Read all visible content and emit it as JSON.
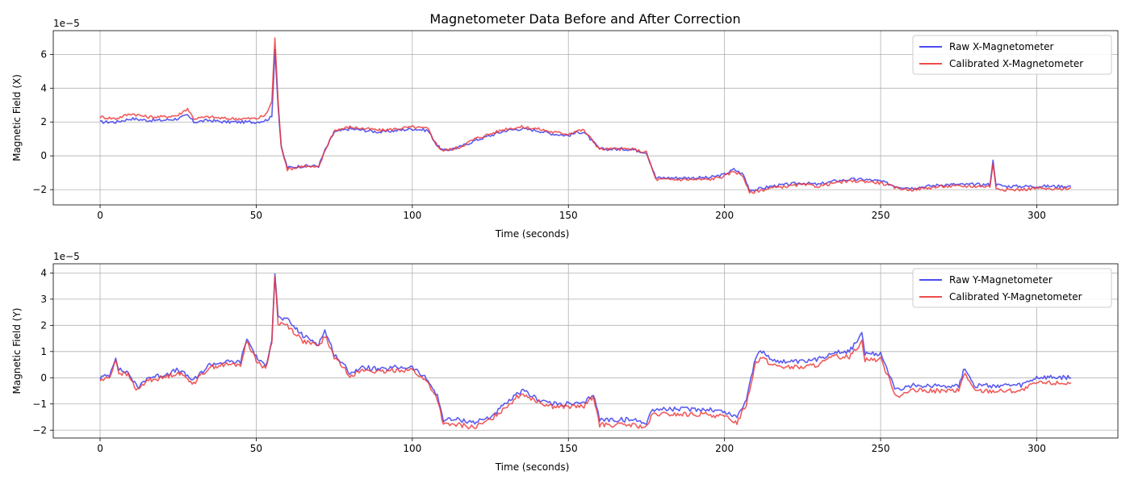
{
  "title": "Magnetometer Data Before and After Correction",
  "colors": {
    "raw": "#3333ee",
    "calibrated": "#ee3333",
    "grid": "#b0b0b0"
  },
  "chart_data": [
    {
      "type": "line",
      "title": "Magnetometer Data Before and After Correction",
      "xlabel": "Time (seconds)",
      "ylabel": "Magnetic Field (X)",
      "offset_label": "1e−5",
      "xlim": [
        -15,
        326
      ],
      "ylim": [
        -2.9,
        7.4
      ],
      "xticks": [
        0,
        50,
        100,
        150,
        200,
        250,
        300
      ],
      "yticks": [
        -2,
        0,
        2,
        4,
        6
      ],
      "grid": true,
      "legend_position": "top-right",
      "series": [
        {
          "name": "Raw X-Magnetometer",
          "color": "#3333ee",
          "x": [
            0,
            5,
            10,
            15,
            20,
            25,
            28,
            30,
            35,
            40,
            45,
            50,
            53,
            55,
            56,
            57,
            58,
            60,
            65,
            70,
            72,
            75,
            80,
            85,
            90,
            95,
            100,
            105,
            108,
            110,
            115,
            120,
            125,
            130,
            135,
            140,
            145,
            150,
            153,
            155,
            160,
            165,
            170,
            175,
            178,
            180,
            185,
            190,
            195,
            200,
            203,
            206,
            208,
            210,
            215,
            220,
            225,
            230,
            235,
            240,
            245,
            250,
            255,
            260,
            265,
            270,
            275,
            280,
            285,
            286,
            287,
            290,
            295,
            300,
            305,
            311
          ],
          "y": [
            2.0,
            2.0,
            2.2,
            2.1,
            2.1,
            2.2,
            2.4,
            2.0,
            2.1,
            2.0,
            2.0,
            2.0,
            2.1,
            2.3,
            6.3,
            3.0,
            0.5,
            -0.7,
            -0.6,
            -0.6,
            0.3,
            1.4,
            1.6,
            1.5,
            1.4,
            1.5,
            1.6,
            1.5,
            0.6,
            0.3,
            0.5,
            0.9,
            1.2,
            1.5,
            1.6,
            1.5,
            1.3,
            1.2,
            1.4,
            1.4,
            0.4,
            0.4,
            0.4,
            0.2,
            -1.3,
            -1.3,
            -1.3,
            -1.3,
            -1.3,
            -1.1,
            -0.8,
            -1.1,
            -2.0,
            -2.0,
            -1.8,
            -1.7,
            -1.6,
            -1.7,
            -1.5,
            -1.4,
            -1.4,
            -1.5,
            -1.8,
            -1.9,
            -1.8,
            -1.7,
            -1.7,
            -1.7,
            -1.7,
            -0.3,
            -1.7,
            -1.8,
            -1.8,
            -1.8,
            -1.8,
            -1.8
          ]
        },
        {
          "name": "Calibrated X-Magnetometer",
          "color": "#ee3333",
          "x": [
            0,
            5,
            10,
            15,
            20,
            25,
            28,
            30,
            35,
            40,
            45,
            50,
            53,
            55,
            56,
            57,
            58,
            60,
            65,
            70,
            72,
            75,
            80,
            85,
            90,
            95,
            100,
            105,
            108,
            110,
            115,
            120,
            125,
            130,
            135,
            140,
            145,
            150,
            153,
            155,
            160,
            165,
            170,
            175,
            178,
            180,
            185,
            190,
            195,
            200,
            203,
            206,
            208,
            210,
            215,
            220,
            225,
            230,
            235,
            240,
            245,
            250,
            255,
            260,
            265,
            270,
            275,
            280,
            285,
            286,
            287,
            290,
            295,
            300,
            305,
            311
          ],
          "y": [
            2.3,
            2.2,
            2.5,
            2.3,
            2.3,
            2.4,
            2.8,
            2.2,
            2.3,
            2.2,
            2.2,
            2.2,
            2.4,
            3.2,
            7.0,
            3.2,
            0.6,
            -0.8,
            -0.6,
            -0.7,
            0.3,
            1.5,
            1.7,
            1.6,
            1.5,
            1.6,
            1.7,
            1.6,
            0.6,
            0.3,
            0.5,
            1.0,
            1.3,
            1.6,
            1.7,
            1.6,
            1.4,
            1.3,
            1.5,
            1.5,
            0.4,
            0.4,
            0.4,
            0.2,
            -1.4,
            -1.4,
            -1.4,
            -1.4,
            -1.4,
            -1.2,
            -0.9,
            -1.2,
            -2.2,
            -2.1,
            -1.9,
            -1.8,
            -1.7,
            -1.8,
            -1.6,
            -1.5,
            -1.5,
            -1.6,
            -1.9,
            -2.0,
            -1.9,
            -1.8,
            -1.8,
            -1.8,
            -1.8,
            -0.5,
            -1.9,
            -2.0,
            -2.0,
            -1.9,
            -2.0,
            -1.9
          ]
        }
      ]
    },
    {
      "type": "line",
      "title": "",
      "xlabel": "Time (seconds)",
      "ylabel": "Magnetic Field (Y)",
      "offset_label": "1e−5",
      "xlim": [
        -15,
        326
      ],
      "ylim": [
        -2.3,
        4.35
      ],
      "xticks": [
        0,
        50,
        100,
        150,
        200,
        250,
        300
      ],
      "yticks": [
        -2,
        -1,
        0,
        1,
        2,
        3,
        4
      ],
      "grid": true,
      "legend_position": "top-right",
      "series": [
        {
          "name": "Raw Y-Magnetometer",
          "color": "#3333ee",
          "x": [
            0,
            3,
            5,
            6,
            9,
            12,
            15,
            20,
            25,
            30,
            35,
            40,
            45,
            47,
            50,
            53,
            55,
            56,
            57,
            60,
            65,
            70,
            72,
            75,
            80,
            85,
            90,
            95,
            100,
            105,
            108,
            110,
            115,
            120,
            125,
            130,
            135,
            137,
            140,
            145,
            150,
            155,
            158,
            160,
            165,
            170,
            175,
            177,
            180,
            185,
            190,
            195,
            200,
            204,
            207,
            210,
            212,
            215,
            220,
            225,
            230,
            235,
            240,
            244,
            245,
            250,
            253,
            255,
            260,
            265,
            270,
            275,
            277,
            280,
            285,
            290,
            295,
            300,
            305,
            311
          ],
          "y": [
            0.0,
            0.1,
            0.8,
            0.3,
            0.2,
            -0.4,
            0.0,
            0.1,
            0.3,
            -0.1,
            0.5,
            0.6,
            0.6,
            1.5,
            0.8,
            0.4,
            1.5,
            4.0,
            2.3,
            2.2,
            1.6,
            1.3,
            1.8,
            0.9,
            0.2,
            0.4,
            0.3,
            0.4,
            0.4,
            -0.1,
            -0.7,
            -1.6,
            -1.6,
            -1.7,
            -1.5,
            -1.0,
            -0.5,
            -0.6,
            -0.8,
            -1.0,
            -1.0,
            -1.0,
            -0.6,
            -1.6,
            -1.6,
            -1.6,
            -1.7,
            -1.2,
            -1.2,
            -1.2,
            -1.2,
            -1.2,
            -1.3,
            -1.5,
            -0.8,
            0.8,
            1.0,
            0.7,
            0.6,
            0.6,
            0.7,
            1.0,
            1.0,
            1.7,
            0.9,
            0.9,
            0.1,
            -0.5,
            -0.3,
            -0.3,
            -0.3,
            -0.3,
            0.4,
            -0.3,
            -0.3,
            -0.3,
            -0.3,
            0.0,
            0.0,
            0.0
          ]
        },
        {
          "name": "Calibrated Y-Magnetometer",
          "color": "#ee3333",
          "x": [
            0,
            3,
            5,
            6,
            9,
            12,
            15,
            20,
            25,
            30,
            35,
            40,
            45,
            47,
            50,
            53,
            55,
            56,
            57,
            60,
            65,
            70,
            72,
            75,
            80,
            85,
            90,
            95,
            100,
            105,
            108,
            110,
            115,
            120,
            125,
            130,
            135,
            137,
            140,
            145,
            150,
            155,
            158,
            160,
            165,
            170,
            175,
            177,
            180,
            185,
            190,
            195,
            200,
            204,
            207,
            210,
            212,
            215,
            220,
            225,
            230,
            235,
            240,
            244,
            245,
            250,
            253,
            255,
            260,
            265,
            270,
            275,
            277,
            280,
            285,
            290,
            295,
            300,
            305,
            311
          ],
          "y": [
            -0.1,
            0.0,
            0.7,
            0.2,
            0.1,
            -0.5,
            -0.1,
            0.0,
            0.2,
            -0.2,
            0.4,
            0.5,
            0.5,
            1.4,
            0.7,
            0.3,
            1.4,
            3.9,
            2.1,
            2.0,
            1.4,
            1.2,
            1.6,
            0.8,
            0.1,
            0.3,
            0.2,
            0.3,
            0.3,
            -0.2,
            -0.8,
            -1.8,
            -1.8,
            -1.9,
            -1.6,
            -1.1,
            -0.6,
            -0.7,
            -0.9,
            -1.1,
            -1.1,
            -1.1,
            -0.7,
            -1.8,
            -1.8,
            -1.8,
            -1.9,
            -1.4,
            -1.4,
            -1.4,
            -1.4,
            -1.4,
            -1.5,
            -1.7,
            -1.0,
            0.6,
            0.8,
            0.5,
            0.4,
            0.4,
            0.5,
            0.8,
            0.8,
            1.4,
            0.7,
            0.7,
            -0.1,
            -0.7,
            -0.5,
            -0.5,
            -0.5,
            -0.5,
            0.2,
            -0.5,
            -0.5,
            -0.5,
            -0.5,
            -0.2,
            -0.2,
            -0.2
          ]
        }
      ]
    }
  ]
}
